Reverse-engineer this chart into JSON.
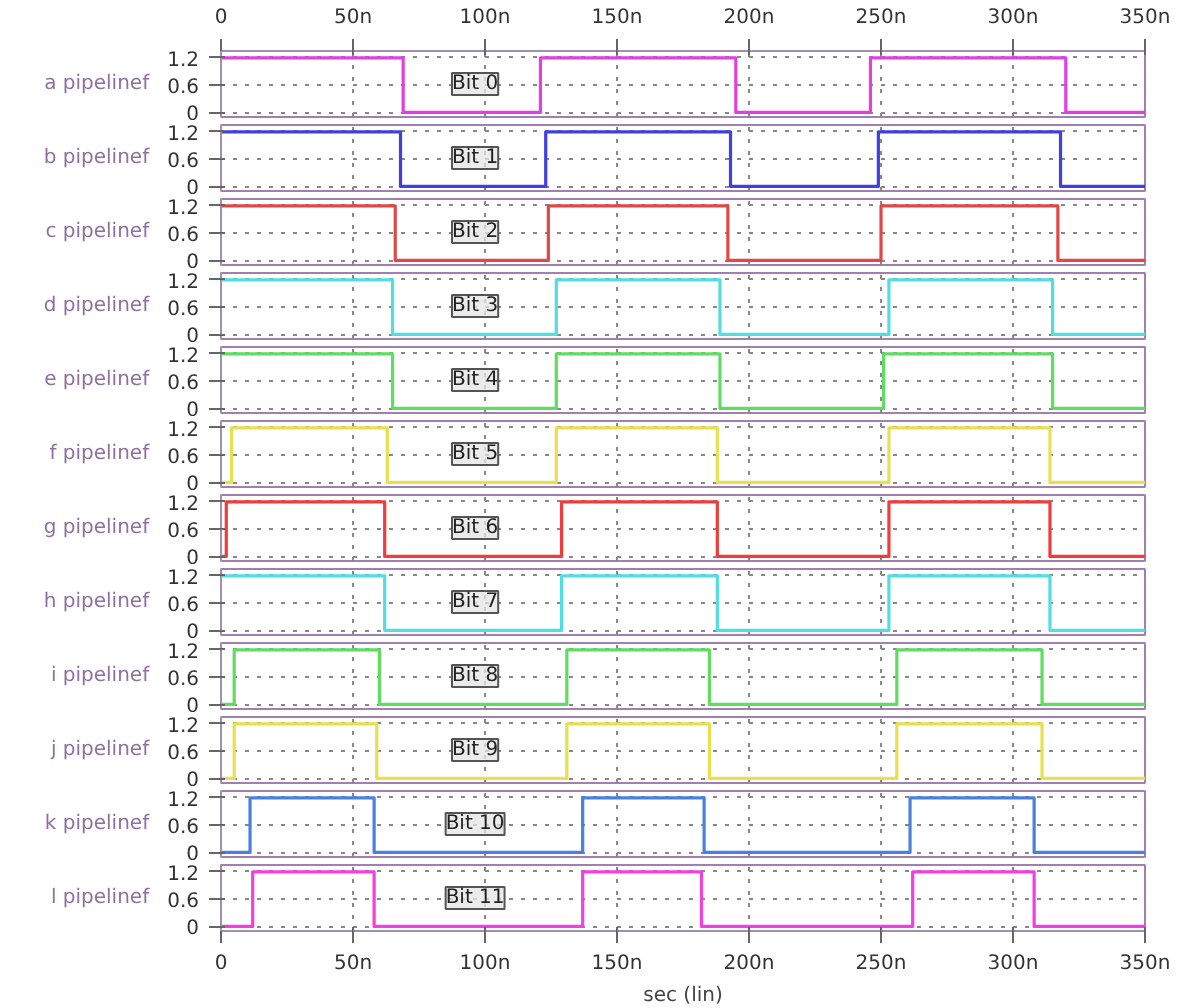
{
  "chart_data": [
    {
      "type": "step",
      "ylabel": "a pipelinef",
      "xlim": [
        0,
        350
      ],
      "x2lim": [
        0,
        350
      ],
      "x2ticks": [
        0,
        {
          "value": 50,
          "label": "50n"
        },
        {
          "value": 100,
          "label": "100n"
        },
        {
          "value": 150,
          "label": "150n"
        },
        {
          "value": 200,
          "label": "200n"
        },
        {
          "value": 250,
          "label": "250n"
        },
        {
          "value": 300,
          "label": "300n"
        },
        {
          "value": 350,
          "label": "350n"
        }
      ],
      "ylim": [
        -0.1,
        1.35
      ],
      "yticks": [
        0,
        0.6,
        1.2
      ],
      "grid": true,
      "tick_labels": "y",
      "annotations": [
        "Bit 0"
      ],
      "series": [
        {
          "color": "#e040e0",
          "x": [
            0,
            69,
            121,
            195,
            246,
            320,
            350
          ],
          "values": [
            1.2,
            0,
            1.2,
            0,
            1.2,
            0,
            0
          ]
        }
      ]
    },
    {
      "type": "step",
      "ylabel": "b pipelinef",
      "xlim": [
        0,
        350
      ],
      "xticks": [
        {
          "value": 50,
          "label": null
        },
        {
          "value": 100,
          "label": null
        },
        {
          "value": 150,
          "label": null
        },
        {
          "value": 200,
          "label": null
        },
        {
          "value": 250,
          "label": null
        },
        {
          "value": 300,
          "label": null
        }
      ],
      "ylim": [
        -0.1,
        1.35
      ],
      "yticks": [
        0,
        0.6,
        1.2
      ],
      "grid": true,
      "tick_labels": "y",
      "annotations": [
        "Bit 1"
      ],
      "series": [
        {
          "color": "#4040e0",
          "x": [
            0,
            68,
            123,
            193,
            249,
            318,
            350
          ],
          "values": [
            1.2,
            0,
            1.2,
            0,
            1.2,
            0,
            0
          ]
        }
      ]
    },
    {
      "type": "step",
      "ylabel": "c pipelinef",
      "xlim": [
        0,
        350
      ],
      "xticks": [
        {
          "value": 50,
          "label": null
        },
        {
          "value": 100,
          "label": null
        },
        {
          "value": 150,
          "label": null
        },
        {
          "value": 200,
          "label": null
        },
        {
          "value": 250,
          "label": null
        },
        {
          "value": 300,
          "label": null
        }
      ],
      "ylim": [
        -0.1,
        1.35
      ],
      "yticks": [
        0,
        0.6,
        1.2
      ],
      "grid": true,
      "tick_labels": "y",
      "annotations": [
        "Bit 2"
      ],
      "series": [
        {
          "color": "#e04848",
          "x": [
            0,
            66,
            124,
            192,
            250,
            317,
            350
          ],
          "values": [
            1.2,
            0,
            1.2,
            0,
            1.2,
            0,
            0
          ]
        }
      ]
    },
    {
      "type": "step",
      "ylabel": "d pipelinef",
      "xlim": [
        0,
        350
      ],
      "xticks": [
        {
          "value": 50,
          "label": null
        },
        {
          "value": 100,
          "label": null
        },
        {
          "value": 150,
          "label": null
        },
        {
          "value": 200,
          "label": null
        },
        {
          "value": 250,
          "label": null
        },
        {
          "value": 300,
          "label": null
        }
      ],
      "ylim": [
        -0.1,
        1.35
      ],
      "yticks": [
        0,
        0.6,
        1.2
      ],
      "grid": true,
      "tick_labels": "y",
      "annotations": [
        "Bit 3"
      ],
      "series": [
        {
          "color": "#50dede",
          "x": [
            0,
            65,
            127,
            189,
            253,
            315,
            350
          ],
          "values": [
            1.2,
            0,
            1.2,
            0,
            1.2,
            0,
            0
          ]
        }
      ]
    },
    {
      "type": "step",
      "ylabel": "e pipelinef",
      "xlim": [
        0,
        350
      ],
      "xticks": [
        {
          "value": 50,
          "label": null
        },
        {
          "value": 100,
          "label": null
        },
        {
          "value": 150,
          "label": null
        },
        {
          "value": 200,
          "label": null
        },
        {
          "value": 250,
          "label": null
        },
        {
          "value": 300,
          "label": null
        }
      ],
      "ylim": [
        -0.1,
        1.35
      ],
      "yticks": [
        0,
        0.6,
        1.2
      ],
      "grid": true,
      "tick_labels": "y",
      "annotations": [
        "Bit 4"
      ],
      "series": [
        {
          "color": "#60dc60",
          "x": [
            0,
            65,
            127,
            189,
            251,
            315,
            350
          ],
          "values": [
            1.2,
            0,
            1.2,
            0,
            1.2,
            0,
            0
          ]
        }
      ]
    },
    {
      "type": "step",
      "ylabel": "f pipelinef",
      "xlim": [
        0,
        350
      ],
      "xticks": [
        {
          "value": 50,
          "label": null
        },
        {
          "value": 100,
          "label": null
        },
        {
          "value": 150,
          "label": null
        },
        {
          "value": 200,
          "label": null
        },
        {
          "value": 250,
          "label": null
        },
        {
          "value": 300,
          "label": null
        }
      ],
      "ylim": [
        -0.1,
        1.35
      ],
      "yticks": [
        0,
        0.6,
        1.2
      ],
      "grid": true,
      "tick_labels": "y",
      "annotations": [
        "Bit 5"
      ],
      "series": [
        {
          "color": "#e8e050",
          "x": [
            0,
            4,
            63,
            127,
            188,
            253,
            314,
            350
          ],
          "values": [
            0,
            1.2,
            0,
            1.2,
            0,
            1.2,
            0,
            0
          ]
        }
      ]
    },
    {
      "type": "step",
      "ylabel": "g pipelinef",
      "xlim": [
        0,
        350
      ],
      "xticks": [
        {
          "value": 50,
          "label": null
        },
        {
          "value": 100,
          "label": null
        },
        {
          "value": 150,
          "label": null
        },
        {
          "value": 200,
          "label": null
        },
        {
          "value": 250,
          "label": null
        },
        {
          "value": 300,
          "label": null
        }
      ],
      "ylim": [
        -0.1,
        1.35
      ],
      "yticks": [
        0,
        0.6,
        1.2
      ],
      "grid": true,
      "tick_labels": "y",
      "annotations": [
        "Bit 6"
      ],
      "series": [
        {
          "color": "#f03c3c",
          "x": [
            0,
            2,
            62,
            129,
            188,
            253,
            314,
            350
          ],
          "values": [
            0,
            1.2,
            0,
            1.2,
            0,
            1.2,
            0,
            0
          ]
        }
      ]
    },
    {
      "type": "step",
      "ylabel": "h pipelinef",
      "xlim": [
        0,
        350
      ],
      "xticks": [
        {
          "value": 50,
          "label": null
        },
        {
          "value": 100,
          "label": null
        },
        {
          "value": 150,
          "label": null
        },
        {
          "value": 200,
          "label": null
        },
        {
          "value": 250,
          "label": null
        },
        {
          "value": 300,
          "label": null
        }
      ],
      "ylim": [
        -0.1,
        1.35
      ],
      "yticks": [
        0,
        0.6,
        1.2
      ],
      "grid": true,
      "tick_labels": "y",
      "annotations": [
        "Bit 7"
      ],
      "series": [
        {
          "color": "#50dede",
          "x": [
            0,
            62,
            129,
            188,
            253,
            314,
            350
          ],
          "values": [
            1.2,
            0,
            1.2,
            0,
            1.2,
            0,
            0
          ]
        }
      ]
    },
    {
      "type": "step",
      "ylabel": "i pipelinef",
      "xlim": [
        0,
        350
      ],
      "xticks": [
        {
          "value": 50,
          "label": null
        },
        {
          "value": 100,
          "label": null
        },
        {
          "value": 150,
          "label": null
        },
        {
          "value": 200,
          "label": null
        },
        {
          "value": 250,
          "label": null
        },
        {
          "value": 300,
          "label": null
        }
      ],
      "ylim": [
        -0.1,
        1.35
      ],
      "yticks": [
        0,
        0.6,
        1.2
      ],
      "grid": true,
      "tick_labels": "y",
      "annotations": [
        "Bit 8"
      ],
      "series": [
        {
          "color": "#60dc60",
          "x": [
            0,
            5,
            60,
            131,
            185,
            256,
            311,
            350
          ],
          "values": [
            0,
            1.2,
            0,
            1.2,
            0,
            1.2,
            0,
            0
          ]
        }
      ]
    },
    {
      "type": "step",
      "ylabel": "j pipelinef",
      "xlim": [
        0,
        350
      ],
      "xticks": [
        {
          "value": 50,
          "label": null
        },
        {
          "value": 100,
          "label": null
        },
        {
          "value": 150,
          "label": null
        },
        {
          "value": 200,
          "label": null
        },
        {
          "value": 250,
          "label": null
        },
        {
          "value": 300,
          "label": null
        }
      ],
      "ylim": [
        -0.1,
        1.35
      ],
      "yticks": [
        0,
        0.6,
        1.2
      ],
      "grid": true,
      "tick_labels": "y",
      "annotations": [
        "Bit 9"
      ],
      "series": [
        {
          "color": "#e8e050",
          "x": [
            0,
            5,
            59,
            131,
            185,
            256,
            311,
            350
          ],
          "values": [
            0,
            1.2,
            0,
            1.2,
            0,
            1.2,
            0,
            0
          ]
        }
      ]
    },
    {
      "type": "step",
      "ylabel": "k pipelinef",
      "xlim": [
        0,
        350
      ],
      "xticks": [
        {
          "value": 50,
          "label": null
        },
        {
          "value": 100,
          "label": null
        },
        {
          "value": 150,
          "label": null
        },
        {
          "value": 200,
          "label": null
        },
        {
          "value": 250,
          "label": null
        },
        {
          "value": 300,
          "label": null
        }
      ],
      "ylim": [
        -0.1,
        1.35
      ],
      "yticks": [
        0,
        0.6,
        1.2
      ],
      "grid": true,
      "tick_labels": "y",
      "annotations": [
        "Bit 10"
      ],
      "series": [
        {
          "color": "#4a80e0",
          "x": [
            0,
            11,
            58,
            137,
            183,
            261,
            308,
            350
          ],
          "values": [
            0,
            1.2,
            0,
            1.2,
            0,
            1.2,
            0,
            0
          ]
        }
      ]
    },
    {
      "type": "step",
      "ylabel": "l pipelinef",
      "xlabel": "sec (lin)",
      "xlim": [
        0,
        350
      ],
      "xticks": [
        0,
        {
          "value": 50,
          "label": "50n"
        },
        {
          "value": 100,
          "label": "100n"
        },
        {
          "value": 150,
          "label": "150n"
        },
        {
          "value": 200,
          "label": "200n"
        },
        {
          "value": 250,
          "label": "250n"
        },
        {
          "value": 300,
          "label": "300n"
        },
        {
          "value": 350,
          "label": "350n"
        }
      ],
      "ylim": [
        -0.1,
        1.35
      ],
      "yticks": [
        0,
        0.6,
        1.2
      ],
      "grid": true,
      "annotations": [
        "Bit 11"
      ],
      "series": [
        {
          "color": "#f040e0",
          "x": [
            0,
            12,
            58,
            137,
            182,
            262,
            308,
            350
          ],
          "values": [
            0,
            1.2,
            0,
            1.2,
            0,
            1.2,
            0,
            0
          ]
        }
      ]
    }
  ]
}
